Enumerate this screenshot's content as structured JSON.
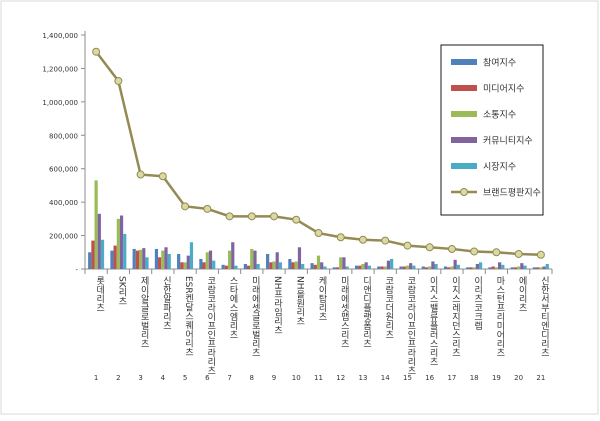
{
  "chart_data": {
    "type": "bar",
    "title": "",
    "xlabel": "",
    "ylabel": "",
    "ylim": [
      0,
      1400000
    ],
    "yticks": [
      0,
      200000,
      400000,
      600000,
      800000,
      1000000,
      1200000,
      1400000
    ],
    "ytick_labels": [
      "-",
      "200,000",
      "400,000",
      "600,000",
      "800,000",
      "1,000,000",
      "1,200,000",
      "1,400,000"
    ],
    "ranks": [
      "1",
      "2",
      "3",
      "4",
      "5",
      "6",
      "7",
      "8",
      "9",
      "10",
      "11",
      "12",
      "13",
      "14",
      "15",
      "16",
      "17",
      "18",
      "19",
      "20",
      "21"
    ],
    "categories": [
      "롯데리츠",
      "SK리츠",
      "제이알글로벌리츠",
      "신한알파리츠",
      "ESR켄달스퀘어리츠",
      "코람코라이프인프라리츠",
      "스타에스엠리츠",
      "미래에셋글로벌리츠",
      "NH프라임리츠",
      "NH올원리츠",
      "케이탑리츠",
      "미래에셋맵스리츠",
      "디앤디플랫폼리츠",
      "코람코더원리츠",
      "코람코라이프인프라리츠",
      "이지스밸류플러스리츠",
      "이지스레지던스리츠",
      "이리츠코크렙",
      "마스턴프리미어리츠",
      "에이리츠",
      "신한서부티엔디리츠"
    ],
    "grid": false,
    "legend_position": "right",
    "series": [
      {
        "name": "참여지수",
        "color": "#4f81bd",
        "values": [
          100000,
          110000,
          120000,
          120000,
          90000,
          60000,
          25000,
          30000,
          90000,
          60000,
          35000,
          10000,
          20000,
          15000,
          15000,
          15000,
          15000,
          10000,
          10000,
          10000,
          10000
        ]
      },
      {
        "name": "미디어지수",
        "color": "#c0504d",
        "values": [
          170000,
          140000,
          110000,
          70000,
          40000,
          40000,
          20000,
          20000,
          40000,
          40000,
          25000,
          10000,
          20000,
          15000,
          15000,
          10000,
          10000,
          10000,
          15000,
          10000,
          10000
        ]
      },
      {
        "name": "소통지수",
        "color": "#9bbb59",
        "values": [
          530000,
          300000,
          115000,
          110000,
          40000,
          100000,
          110000,
          120000,
          45000,
          45000,
          80000,
          70000,
          30000,
          15000,
          20000,
          15000,
          15000,
          10000,
          10000,
          15000,
          10000
        ]
      },
      {
        "name": "커뮤니티지수",
        "color": "#8064a2",
        "values": [
          330000,
          320000,
          125000,
          130000,
          80000,
          110000,
          160000,
          110000,
          100000,
          130000,
          40000,
          70000,
          40000,
          50000,
          35000,
          45000,
          55000,
          30000,
          40000,
          35000,
          15000
        ]
      },
      {
        "name": "시장지수",
        "color": "#4bacc6",
        "values": [
          175000,
          210000,
          70000,
          90000,
          160000,
          50000,
          20000,
          30000,
          40000,
          30000,
          15000,
          15000,
          20000,
          60000,
          20000,
          30000,
          25000,
          40000,
          25000,
          20000,
          30000
        ]
      },
      {
        "name": "브랜드평판지수",
        "type": "line",
        "color": "#948a54",
        "values": [
          1300000,
          1125000,
          565000,
          555000,
          375000,
          360000,
          315000,
          315000,
          315000,
          295000,
          215000,
          190000,
          175000,
          170000,
          140000,
          130000,
          120000,
          105000,
          100000,
          90000,
          85000
        ]
      }
    ]
  }
}
